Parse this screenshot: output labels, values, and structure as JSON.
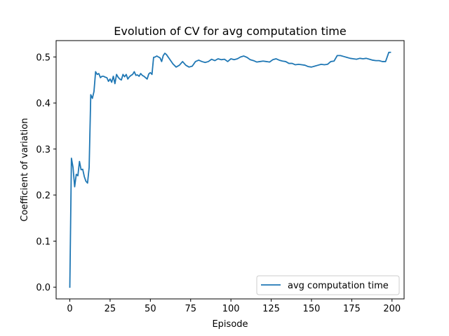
{
  "chart_data": {
    "type": "line",
    "title": "Evolution of CV for avg computation time",
    "xlabel": "Episode",
    "ylabel": "Coefficient of variation",
    "xlim": [
      -8.5,
      207.5
    ],
    "ylim": [
      -0.0255,
      0.5355
    ],
    "xticks": [
      0,
      25,
      50,
      75,
      100,
      125,
      150,
      175,
      200
    ],
    "yticks": [
      0.0,
      0.1,
      0.2,
      0.3,
      0.4,
      0.5
    ],
    "xtick_labels": [
      "0",
      "25",
      "50",
      "75",
      "100",
      "125",
      "150",
      "175",
      "200"
    ],
    "ytick_labels": [
      "0.0",
      "0.1",
      "0.2",
      "0.3",
      "0.4",
      "0.5"
    ],
    "grid": false,
    "legend": {
      "position": "lower-right",
      "entries": [
        "avg computation time"
      ]
    },
    "series_color": "#1f77b4",
    "series": [
      {
        "name": "avg computation time",
        "x": [
          0,
          1,
          2,
          3,
          4,
          5,
          6,
          7,
          8,
          9,
          10,
          11,
          12,
          13,
          14,
          15,
          16,
          17,
          18,
          19,
          20,
          21,
          22,
          23,
          24,
          25,
          26,
          27,
          28,
          29,
          30,
          31,
          32,
          33,
          34,
          35,
          36,
          37,
          38,
          39,
          40,
          41,
          42,
          43,
          44,
          45,
          46,
          47,
          48,
          49,
          50,
          51,
          52,
          53,
          54,
          55,
          56,
          57,
          58,
          59,
          60,
          62,
          64,
          66,
          68,
          70,
          72,
          74,
          76,
          78,
          80,
          82,
          84,
          86,
          88,
          90,
          92,
          94,
          96,
          98,
          100,
          102,
          104,
          106,
          108,
          110,
          112,
          114,
          116,
          118,
          120,
          122,
          124,
          126,
          128,
          130,
          132,
          134,
          136,
          138,
          140,
          142,
          144,
          146,
          148,
          150,
          152,
          154,
          156,
          158,
          160,
          162,
          164,
          166,
          168,
          170,
          172,
          174,
          176,
          178,
          180,
          182,
          184,
          186,
          188,
          190,
          192,
          194,
          196,
          198,
          199
        ],
        "values": [
          0.0,
          0.28,
          0.26,
          0.218,
          0.245,
          0.242,
          0.273,
          0.255,
          0.256,
          0.24,
          0.23,
          0.226,
          0.26,
          0.418,
          0.41,
          0.425,
          0.468,
          0.462,
          0.464,
          0.455,
          0.458,
          0.458,
          0.456,
          0.455,
          0.447,
          0.452,
          0.445,
          0.458,
          0.442,
          0.462,
          0.456,
          0.452,
          0.45,
          0.462,
          0.457,
          0.462,
          0.452,
          0.457,
          0.46,
          0.462,
          0.468,
          0.46,
          0.461,
          0.458,
          0.464,
          0.46,
          0.458,
          0.455,
          0.452,
          0.463,
          0.466,
          0.462,
          0.499,
          0.5,
          0.502,
          0.5,
          0.498,
          0.49,
          0.503,
          0.508,
          0.505,
          0.495,
          0.485,
          0.478,
          0.482,
          0.49,
          0.482,
          0.478,
          0.48,
          0.49,
          0.493,
          0.49,
          0.488,
          0.49,
          0.495,
          0.492,
          0.496,
          0.494,
          0.495,
          0.49,
          0.496,
          0.494,
          0.496,
          0.5,
          0.502,
          0.499,
          0.494,
          0.492,
          0.489,
          0.49,
          0.491,
          0.49,
          0.489,
          0.494,
          0.496,
          0.493,
          0.491,
          0.49,
          0.486,
          0.486,
          0.483,
          0.484,
          0.483,
          0.482,
          0.479,
          0.478,
          0.48,
          0.482,
          0.484,
          0.483,
          0.484,
          0.49,
          0.491,
          0.503,
          0.503,
          0.501,
          0.499,
          0.497,
          0.496,
          0.495,
          0.497,
          0.496,
          0.497,
          0.495,
          0.493,
          0.492,
          0.492,
          0.49,
          0.49,
          0.51,
          0.51
        ]
      }
    ]
  }
}
